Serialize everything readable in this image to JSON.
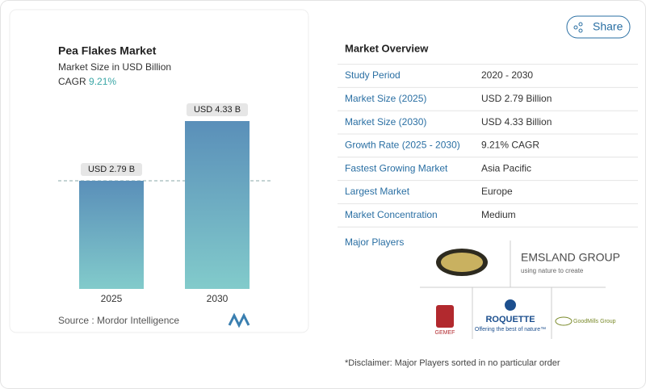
{
  "chart_data": {
    "type": "bar",
    "title": "Pea Flakes Market",
    "subtitle": "Market Size in USD Billion",
    "cagr_label": "CAGR",
    "cagr": "9.21%",
    "categories": [
      "2025",
      "2030"
    ],
    "values": [
      2.79,
      4.33
    ],
    "value_labels": [
      "USD 2.79 B",
      "USD 4.33 B"
    ],
    "source": "Source :  Mordor Intelligence"
  },
  "share": "Share",
  "overview": {
    "title": "Market Overview",
    "rows": [
      [
        "Study Period",
        "2020 - 2030"
      ],
      [
        "Market Size (2025)",
        "USD 2.79 Billion"
      ],
      [
        "Market Size (2030)",
        "USD 4.33 Billion"
      ],
      [
        "Growth Rate (2025 - 2030)",
        "9.21% CAGR"
      ],
      [
        "Fastest Growing Market",
        "Asia Pacific"
      ],
      [
        "Largest Market",
        "Europe"
      ],
      [
        "Market Concentration",
        "Medium"
      ]
    ]
  },
  "players": {
    "title": "Major Players",
    "emsland": "EMSLAND GROUP",
    "emsland_tag": "using nature to create",
    "gemef": "GEMEF",
    "roquette": "ROQUETTE",
    "roquette_tag": "Offering the best of nature™",
    "goodmills": "GoodMills Group"
  },
  "disclaimer": "*Disclaimer: Major Players sorted in no particular order"
}
